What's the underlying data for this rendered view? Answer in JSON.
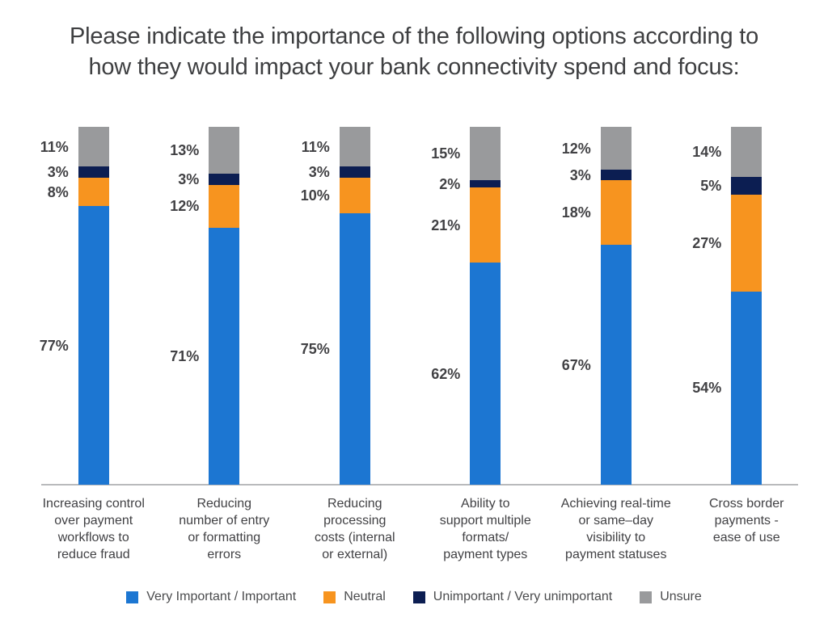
{
  "title": {
    "line1": "Please indicate the importance of the following options  according to",
    "line2": "how they would impact your bank connectivity spend and focus:"
  },
  "legend": {
    "position": "bottom",
    "items": [
      {
        "label": "Very Important / Important",
        "color": "#1C76D2"
      },
      {
        "label": "Neutral",
        "color": "#F7941F"
      },
      {
        "label": "Unimportant / Very unimportant",
        "color": "#0C1E52"
      },
      {
        "label": "Unsure",
        "color": "#999A9C"
      }
    ]
  },
  "chart_data": {
    "type": "bar",
    "stacked": true,
    "orientation": "vertical",
    "title": "Please indicate the importance of the following options  according to how they would impact your bank connectivity spend and focus:",
    "value_suffix": "%",
    "grid": false,
    "y_axis_visible": false,
    "axis_line_color": "#B9BABC",
    "legend_position": "bottom",
    "categories": [
      "Increasing control\nover payment\nworkflows to\nreduce fraud",
      "Reducing\nnumber of entry\nor formatting\nerrors",
      "Reducing\nprocessing\ncosts (internal\nor external)",
      "Ability to\nsupport multiple\nformats/\npayment types",
      "Achieving real-time\nor same–day\nvisibility to\npayment statuses",
      "Cross border\npayments -\nease of use"
    ],
    "series": [
      {
        "name": "Very Important / Important",
        "color": "#1C76D2",
        "values": [
          77,
          71,
          75,
          62,
          67,
          54
        ]
      },
      {
        "name": "Neutral",
        "color": "#F7941F",
        "values": [
          8,
          12,
          10,
          21,
          18,
          27
        ]
      },
      {
        "name": "Unimportant / Very unimportant",
        "color": "#0C1E52",
        "values": [
          3,
          3,
          3,
          2,
          3,
          5
        ]
      },
      {
        "name": "Unsure",
        "color": "#999A9C",
        "values": [
          11,
          13,
          11,
          15,
          12,
          14
        ]
      }
    ]
  }
}
